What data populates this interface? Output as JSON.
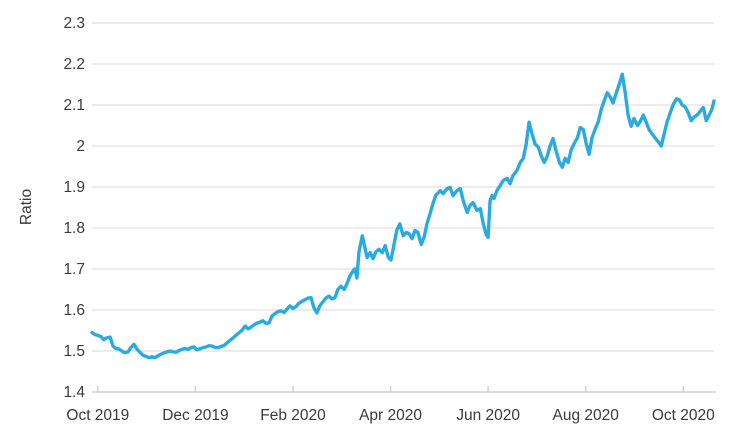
{
  "chart_data": {
    "type": "line",
    "title": "",
    "xlabel": "",
    "ylabel": "Ratio",
    "ylim": [
      1.4,
      2.3
    ],
    "x_range_months": [
      -0.12,
      12.63
    ],
    "grid": true,
    "legend": "none",
    "x_unit": "months since Oct 2019, ticks every 2 months",
    "x_ticks": [
      {
        "t": 0,
        "label": "Oct 2019"
      },
      {
        "t": 2,
        "label": "Dec 2019"
      },
      {
        "t": 4,
        "label": "Feb 2020"
      },
      {
        "t": 6,
        "label": "Apr 2020"
      },
      {
        "t": 8,
        "label": "Jun 2020"
      },
      {
        "t": 10,
        "label": "Aug 2020"
      },
      {
        "t": 12,
        "label": "Oct 2020"
      }
    ],
    "y_ticks": [
      {
        "v": 2.3,
        "label": "2.3"
      },
      {
        "v": 2.2,
        "label": "2.2"
      },
      {
        "v": 2.1,
        "label": "2.1"
      },
      {
        "v": 2.0,
        "label": "2"
      },
      {
        "v": 1.9,
        "label": "1.9"
      },
      {
        "v": 1.8,
        "label": "1.8"
      },
      {
        "v": 1.7,
        "label": "1.7"
      },
      {
        "v": 1.6,
        "label": "1.6"
      },
      {
        "v": 1.5,
        "label": "1.5"
      },
      {
        "v": 1.4,
        "label": "1.4"
      }
    ],
    "series": [
      {
        "name": "Ratio",
        "color": "#29abe2",
        "points": [
          [
            -0.12,
            1.545
          ],
          [
            -0.06,
            1.54
          ],
          [
            0.0,
            1.538
          ],
          [
            0.06,
            1.535
          ],
          [
            0.12,
            1.528
          ],
          [
            0.18,
            1.532
          ],
          [
            0.25,
            1.534
          ],
          [
            0.31,
            1.512
          ],
          [
            0.37,
            1.506
          ],
          [
            0.43,
            1.505
          ],
          [
            0.49,
            1.5
          ],
          [
            0.55,
            1.496
          ],
          [
            0.62,
            1.498
          ],
          [
            0.68,
            1.509
          ],
          [
            0.74,
            1.516
          ],
          [
            0.8,
            1.505
          ],
          [
            0.86,
            1.497
          ],
          [
            0.92,
            1.49
          ],
          [
            0.98,
            1.487
          ],
          [
            1.05,
            1.484
          ],
          [
            1.11,
            1.486
          ],
          [
            1.17,
            1.484
          ],
          [
            1.23,
            1.488
          ],
          [
            1.29,
            1.492
          ],
          [
            1.35,
            1.495
          ],
          [
            1.42,
            1.498
          ],
          [
            1.48,
            1.5
          ],
          [
            1.54,
            1.498
          ],
          [
            1.6,
            1.497
          ],
          [
            1.66,
            1.501
          ],
          [
            1.72,
            1.504
          ],
          [
            1.78,
            1.506
          ],
          [
            1.85,
            1.504
          ],
          [
            1.91,
            1.508
          ],
          [
            1.97,
            1.51
          ],
          [
            2.03,
            1.503
          ],
          [
            2.09,
            1.505
          ],
          [
            2.15,
            1.508
          ],
          [
            2.22,
            1.51
          ],
          [
            2.28,
            1.513
          ],
          [
            2.34,
            1.512
          ],
          [
            2.4,
            1.509
          ],
          [
            2.46,
            1.508
          ],
          [
            2.52,
            1.511
          ],
          [
            2.58,
            1.513
          ],
          [
            2.65,
            1.52
          ],
          [
            2.71,
            1.526
          ],
          [
            2.77,
            1.532
          ],
          [
            2.83,
            1.538
          ],
          [
            2.89,
            1.544
          ],
          [
            2.95,
            1.55
          ],
          [
            3.02,
            1.561
          ],
          [
            3.08,
            1.554
          ],
          [
            3.14,
            1.558
          ],
          [
            3.2,
            1.564
          ],
          [
            3.26,
            1.568
          ],
          [
            3.32,
            1.57
          ],
          [
            3.38,
            1.574
          ],
          [
            3.45,
            1.567
          ],
          [
            3.51,
            1.569
          ],
          [
            3.57,
            1.585
          ],
          [
            3.63,
            1.591
          ],
          [
            3.69,
            1.596
          ],
          [
            3.75,
            1.598
          ],
          [
            3.82,
            1.594
          ],
          [
            3.88,
            1.603
          ],
          [
            3.94,
            1.61
          ],
          [
            4.0,
            1.604
          ],
          [
            4.06,
            1.608
          ],
          [
            4.12,
            1.616
          ],
          [
            4.18,
            1.621
          ],
          [
            4.25,
            1.625
          ],
          [
            4.31,
            1.629
          ],
          [
            4.37,
            1.63
          ],
          [
            4.43,
            1.605
          ],
          [
            4.49,
            1.593
          ],
          [
            4.55,
            1.61
          ],
          [
            4.62,
            1.621
          ],
          [
            4.68,
            1.63
          ],
          [
            4.74,
            1.634
          ],
          [
            4.8,
            1.627
          ],
          [
            4.86,
            1.63
          ],
          [
            4.92,
            1.65
          ],
          [
            4.98,
            1.658
          ],
          [
            5.05,
            1.65
          ],
          [
            5.11,
            1.665
          ],
          [
            5.17,
            1.684
          ],
          [
            5.23,
            1.695
          ],
          [
            5.27,
            1.7
          ],
          [
            5.31,
            1.678
          ],
          [
            5.35,
            1.74
          ],
          [
            5.42,
            1.781
          ],
          [
            5.46,
            1.76
          ],
          [
            5.52,
            1.728
          ],
          [
            5.58,
            1.74
          ],
          [
            5.64,
            1.725
          ],
          [
            5.7,
            1.742
          ],
          [
            5.76,
            1.748
          ],
          [
            5.83,
            1.74
          ],
          [
            5.89,
            1.757
          ],
          [
            5.95,
            1.73
          ],
          [
            6.01,
            1.722
          ],
          [
            6.07,
            1.76
          ],
          [
            6.13,
            1.795
          ],
          [
            6.19,
            1.81
          ],
          [
            6.26,
            1.781
          ],
          [
            6.32,
            1.789
          ],
          [
            6.38,
            1.786
          ],
          [
            6.44,
            1.774
          ],
          [
            6.5,
            1.794
          ],
          [
            6.56,
            1.789
          ],
          [
            6.63,
            1.76
          ],
          [
            6.69,
            1.778
          ],
          [
            6.75,
            1.812
          ],
          [
            6.81,
            1.835
          ],
          [
            6.87,
            1.86
          ],
          [
            6.93,
            1.88
          ],
          [
            7.02,
            1.891
          ],
          [
            7.08,
            1.884
          ],
          [
            7.16,
            1.896
          ],
          [
            7.22,
            1.899
          ],
          [
            7.28,
            1.879
          ],
          [
            7.36,
            1.891
          ],
          [
            7.43,
            1.896
          ],
          [
            7.49,
            1.867
          ],
          [
            7.57,
            1.838
          ],
          [
            7.63,
            1.855
          ],
          [
            7.69,
            1.862
          ],
          [
            7.77,
            1.843
          ],
          [
            7.84,
            1.847
          ],
          [
            7.9,
            1.81
          ],
          [
            7.96,
            1.784
          ],
          [
            8.0,
            1.777
          ],
          [
            8.04,
            1.867
          ],
          [
            8.08,
            1.879
          ],
          [
            8.12,
            1.872
          ],
          [
            8.18,
            1.891
          ],
          [
            8.25,
            1.904
          ],
          [
            8.31,
            1.916
          ],
          [
            8.39,
            1.921
          ],
          [
            8.45,
            1.908
          ],
          [
            8.51,
            1.928
          ],
          [
            8.59,
            1.94
          ],
          [
            8.66,
            1.96
          ],
          [
            8.72,
            1.97
          ],
          [
            8.78,
            2.005
          ],
          [
            8.84,
            2.058
          ],
          [
            8.9,
            2.03
          ],
          [
            8.96,
            2.005
          ],
          [
            9.03,
            1.997
          ],
          [
            9.09,
            1.975
          ],
          [
            9.15,
            1.96
          ],
          [
            9.21,
            1.975
          ],
          [
            9.27,
            2.0
          ],
          [
            9.33,
            2.018
          ],
          [
            9.39,
            1.99
          ],
          [
            9.46,
            1.96
          ],
          [
            9.52,
            1.948
          ],
          [
            9.58,
            1.97
          ],
          [
            9.64,
            1.96
          ],
          [
            9.7,
            1.99
          ],
          [
            9.76,
            2.005
          ],
          [
            9.83,
            2.02
          ],
          [
            9.89,
            2.045
          ],
          [
            9.95,
            2.04
          ],
          [
            10.01,
            2.006
          ],
          [
            10.07,
            1.98
          ],
          [
            10.13,
            2.02
          ],
          [
            10.19,
            2.04
          ],
          [
            10.26,
            2.06
          ],
          [
            10.32,
            2.09
          ],
          [
            10.38,
            2.11
          ],
          [
            10.44,
            2.13
          ],
          [
            10.5,
            2.12
          ],
          [
            10.56,
            2.105
          ],
          [
            10.63,
            2.13
          ],
          [
            10.69,
            2.152
          ],
          [
            10.75,
            2.175
          ],
          [
            10.81,
            2.13
          ],
          [
            10.87,
            2.075
          ],
          [
            10.93,
            2.048
          ],
          [
            10.99,
            2.067
          ],
          [
            11.06,
            2.05
          ],
          [
            11.12,
            2.06
          ],
          [
            11.18,
            2.075
          ],
          [
            11.24,
            2.058
          ],
          [
            11.3,
            2.04
          ],
          [
            11.36,
            2.03
          ],
          [
            11.42,
            2.02
          ],
          [
            11.49,
            2.01
          ],
          [
            11.55,
            2.0
          ],
          [
            11.61,
            2.03
          ],
          [
            11.67,
            2.06
          ],
          [
            11.73,
            2.08
          ],
          [
            11.79,
            2.1
          ],
          [
            11.86,
            2.115
          ],
          [
            11.92,
            2.112
          ],
          [
            11.98,
            2.1
          ],
          [
            12.04,
            2.095
          ],
          [
            12.1,
            2.082
          ],
          [
            12.16,
            2.062
          ],
          [
            12.22,
            2.07
          ],
          [
            12.29,
            2.076
          ],
          [
            12.35,
            2.085
          ],
          [
            12.41,
            2.094
          ],
          [
            12.47,
            2.062
          ],
          [
            12.53,
            2.075
          ],
          [
            12.59,
            2.09
          ],
          [
            12.63,
            2.11
          ]
        ]
      }
    ]
  },
  "colors": {
    "line": "#29abe2",
    "grid": "#d9d9d9",
    "axis": "#cfcfcf",
    "text": "#3a3a3a",
    "background": "#ffffff"
  }
}
